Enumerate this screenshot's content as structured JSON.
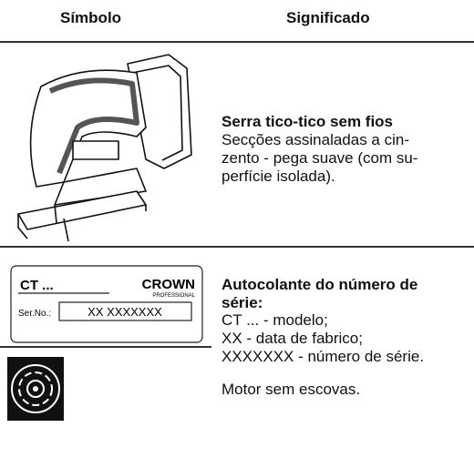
{
  "header": {
    "symbol": "Símbolo",
    "meaning": "Significado"
  },
  "rows": [
    {
      "title": "Serra tico-tico sem fios",
      "lines": [
        "Secções assinaladas a cin-",
        "zento - pega suave (com su-",
        "perfície isolada)."
      ]
    },
    {
      "label": {
        "model": "CT ...",
        "brand": "CROWN",
        "brand_sub": "PROFESSIONAL",
        "serial_label": "Ser.No.:",
        "serial": "XX XXXXXXX"
      },
      "title_lines": [
        "Autocolante do número de",
        "série:"
      ],
      "lines": [
        "CT ... - modelo;",
        "XX - data de fabrico;",
        "XXXXXXX - número de série."
      ]
    },
    {
      "lines": [
        "Motor sem escovas."
      ]
    }
  ]
}
